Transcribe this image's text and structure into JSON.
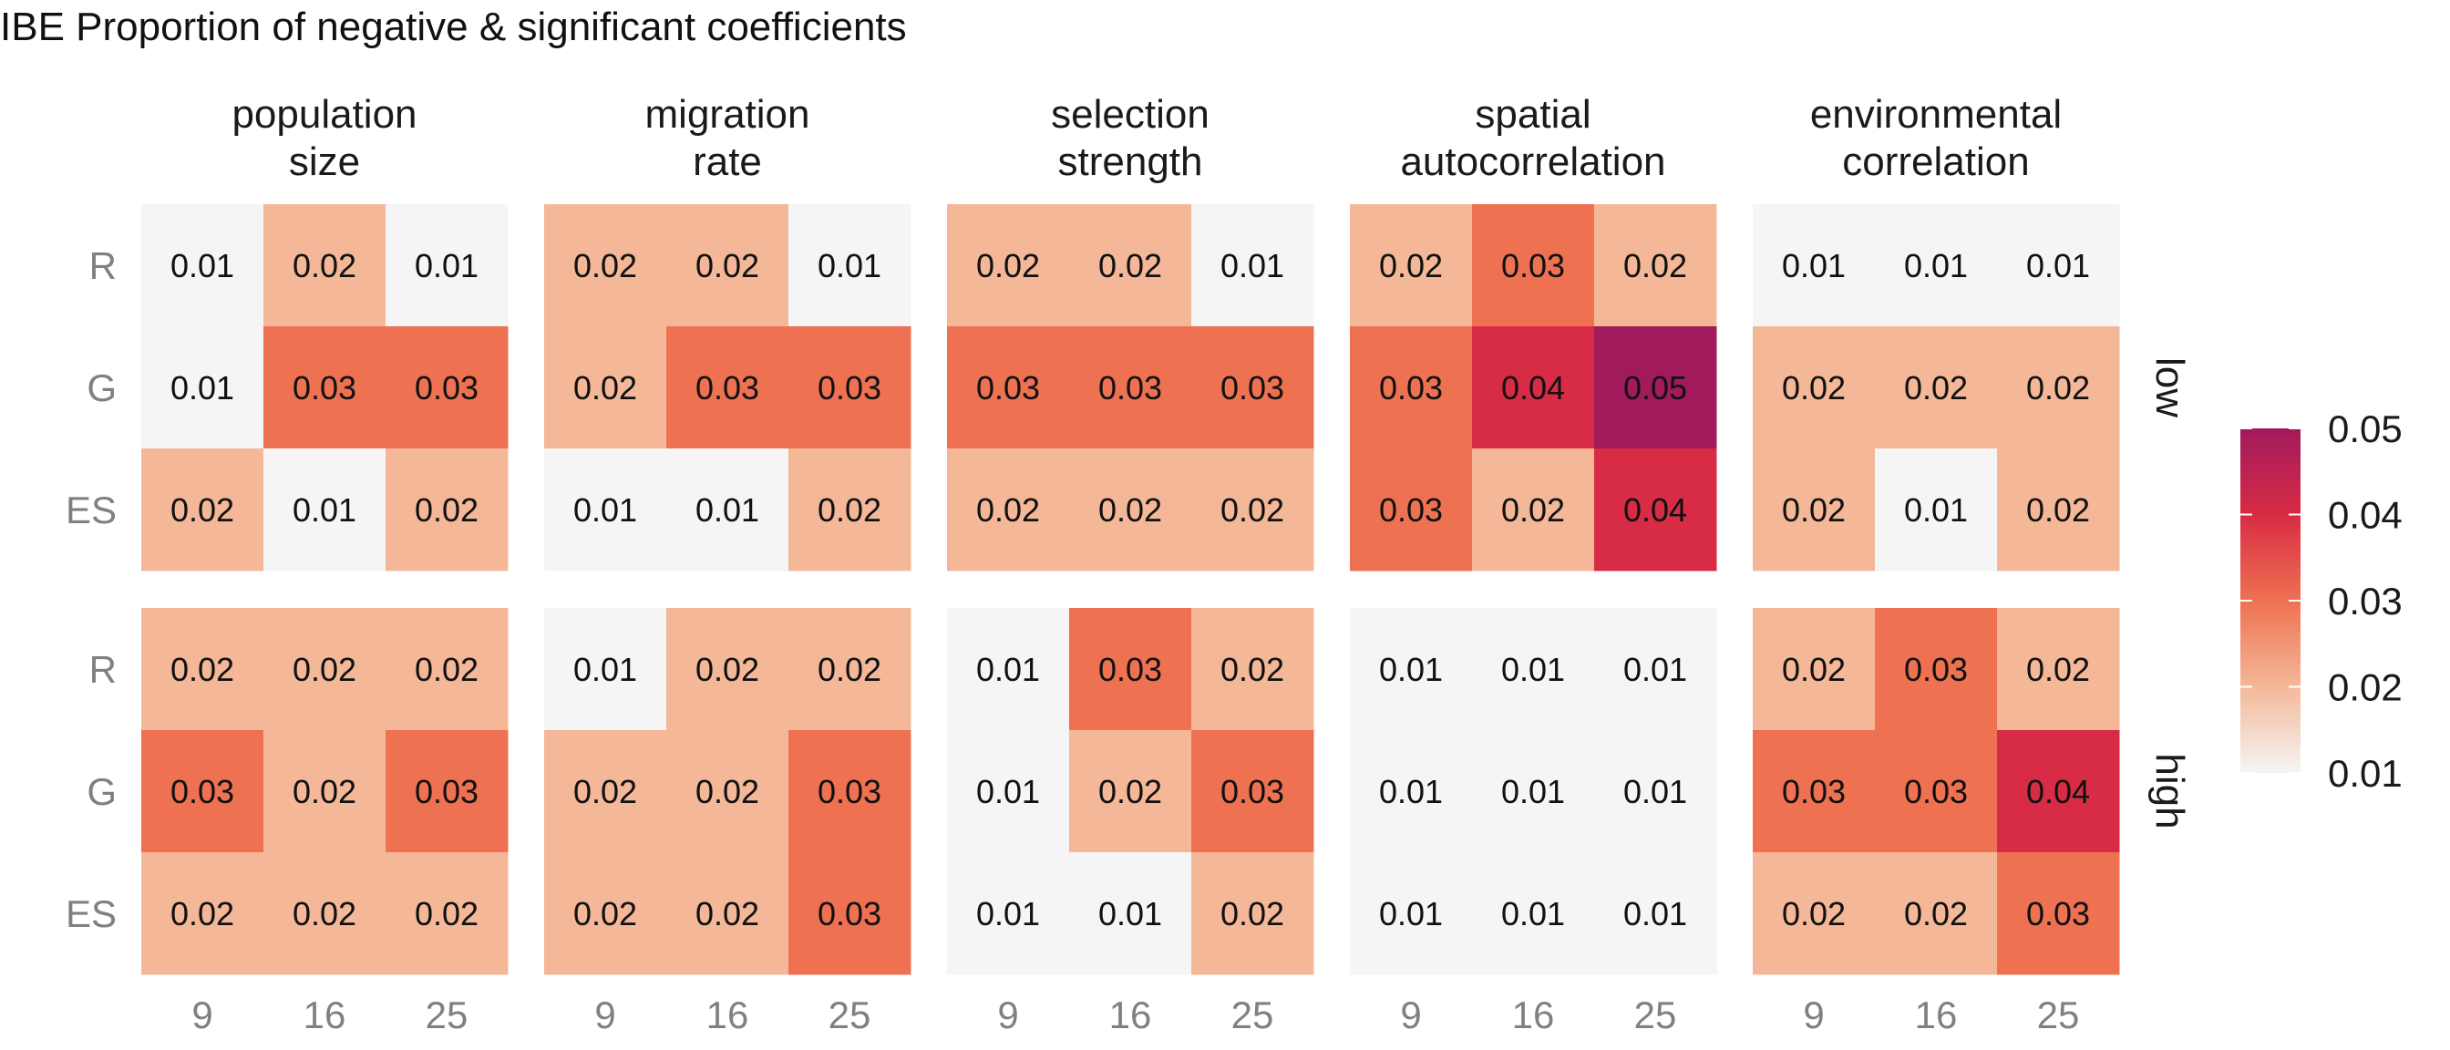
{
  "chart_data": {
    "type": "heatmap",
    "title": "IBE Proportion of negative & significant coefficients",
    "xlabel": "",
    "ylabel": "",
    "x_categories": [
      "9",
      "16",
      "25"
    ],
    "y_categories": [
      "R",
      "G",
      "ES"
    ],
    "column_facets": [
      {
        "line1": "population",
        "line2": "size"
      },
      {
        "line1": "migration",
        "line2": "rate"
      },
      {
        "line1": "selection",
        "line2": "strength"
      },
      {
        "line1": "spatial",
        "line2": "autocorrelation"
      },
      {
        "line1": "environmental",
        "line2": "correlation"
      }
    ],
    "row_facets": [
      "low",
      "high"
    ],
    "legend": {
      "position": "right",
      "min": 0.01,
      "max": 0.05,
      "ticks": [
        "0.05",
        "0.04",
        "0.03",
        "0.02",
        "0.01"
      ],
      "colors": {
        "0.01": "#f5f5f5",
        "0.02": "#f4b898",
        "0.03": "#ee7152",
        "0.04": "#d82b45",
        "0.05": "#a11a5b"
      }
    },
    "values": {
      "low": [
        [
          [
            "0.01",
            "0.02",
            "0.01"
          ],
          [
            "0.01",
            "0.03",
            "0.03"
          ],
          [
            "0.02",
            "0.01",
            "0.02"
          ]
        ],
        [
          [
            "0.02",
            "0.02",
            "0.01"
          ],
          [
            "0.02",
            "0.03",
            "0.03"
          ],
          [
            "0.01",
            "0.01",
            "0.02"
          ]
        ],
        [
          [
            "0.02",
            "0.02",
            "0.01"
          ],
          [
            "0.03",
            "0.03",
            "0.03"
          ],
          [
            "0.02",
            "0.02",
            "0.02"
          ]
        ],
        [
          [
            "0.02",
            "0.03",
            "0.02"
          ],
          [
            "0.03",
            "0.04",
            "0.05"
          ],
          [
            "0.03",
            "0.02",
            "0.04"
          ]
        ],
        [
          [
            "0.01",
            "0.01",
            "0.01"
          ],
          [
            "0.02",
            "0.02",
            "0.02"
          ],
          [
            "0.02",
            "0.01",
            "0.02"
          ]
        ]
      ],
      "high": [
        [
          [
            "0.02",
            "0.02",
            "0.02"
          ],
          [
            "0.03",
            "0.02",
            "0.03"
          ],
          [
            "0.02",
            "0.02",
            "0.02"
          ]
        ],
        [
          [
            "0.01",
            "0.02",
            "0.02"
          ],
          [
            "0.02",
            "0.02",
            "0.03"
          ],
          [
            "0.02",
            "0.02",
            "0.03"
          ]
        ],
        [
          [
            "0.01",
            "0.03",
            "0.02"
          ],
          [
            "0.01",
            "0.02",
            "0.03"
          ],
          [
            "0.01",
            "0.01",
            "0.02"
          ]
        ],
        [
          [
            "0.01",
            "0.01",
            "0.01"
          ],
          [
            "0.01",
            "0.01",
            "0.01"
          ],
          [
            "0.01",
            "0.01",
            "0.01"
          ]
        ],
        [
          [
            "0.02",
            "0.03",
            "0.02"
          ],
          [
            "0.03",
            "0.03",
            "0.04"
          ],
          [
            "0.02",
            "0.02",
            "0.03"
          ]
        ]
      ]
    }
  }
}
